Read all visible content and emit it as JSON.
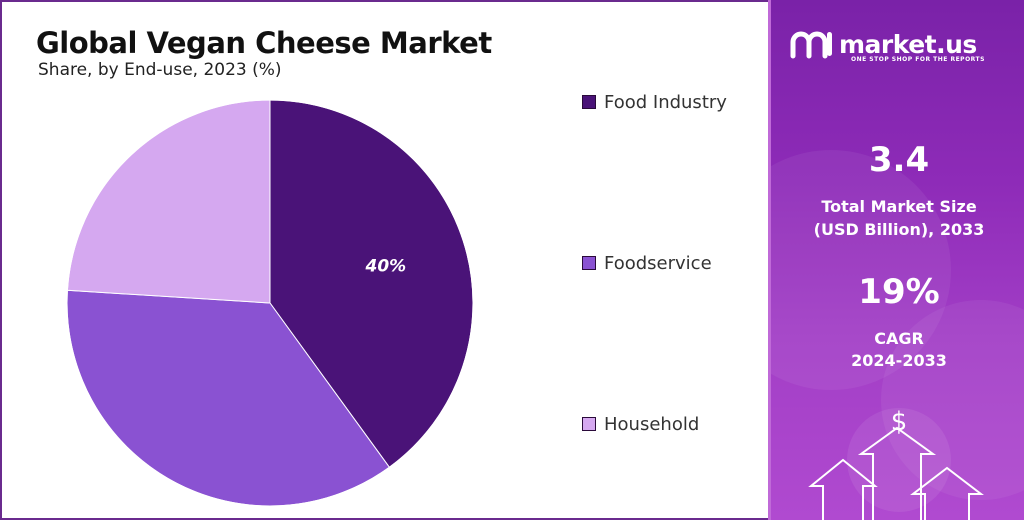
{
  "chart_data": {
    "type": "pie",
    "title": "Global Vegan Cheese Market",
    "subtitle": "Share, by End-use, 2023 (%)",
    "categories": [
      "Food Industry",
      "Foodservice",
      "Household"
    ],
    "values": [
      40,
      36,
      24
    ],
    "data_labels": [
      "40%",
      "",
      ""
    ],
    "colors": [
      "#4a1378",
      "#8a52d2",
      "#d5a8f0"
    ],
    "legend_position": "right"
  },
  "brand": {
    "name": "market.us",
    "tagline": "ONE STOP SHOP FOR THE REPORTS"
  },
  "stats": {
    "market_size_value": "3.4",
    "market_size_label_line1": "Total Market Size",
    "market_size_label_line2": "(USD Billion), 2033",
    "cagr_value": "19%",
    "cagr_label_line1": "CAGR",
    "cagr_label_line2": "2024-2033"
  },
  "decor": {
    "dollar_symbol": "$",
    "icons": [
      "dollar-icon",
      "up-arrow-icon"
    ]
  }
}
